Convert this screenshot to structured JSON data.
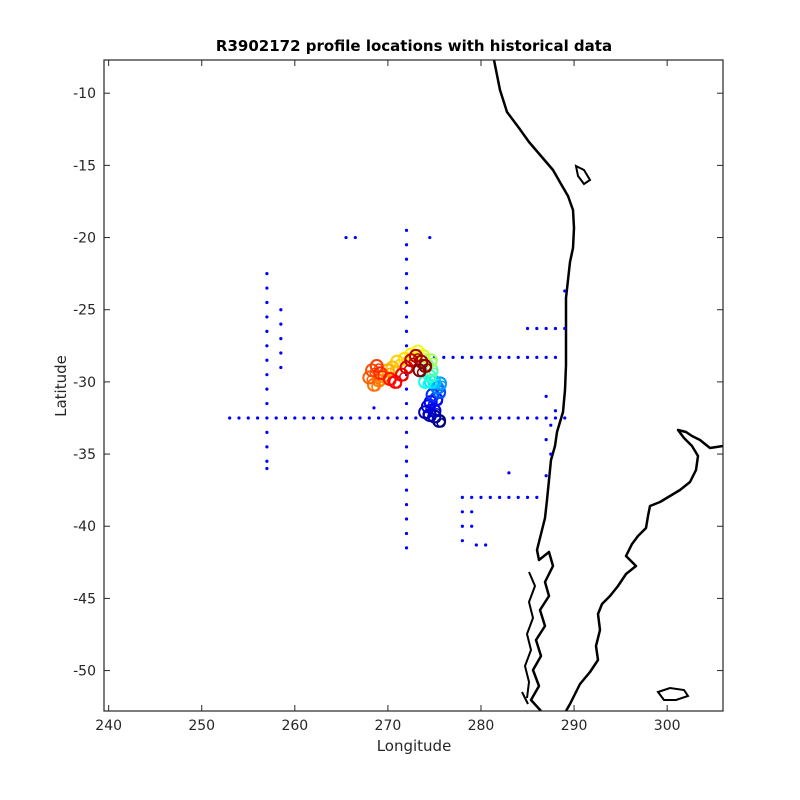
{
  "chart_data": {
    "type": "scatter",
    "title": "R3902172 profile locations with historical data",
    "xlabel": "Longitude",
    "ylabel": "Latitude",
    "xlim": [
      239.5,
      306
    ],
    "ylim": [
      -52.8,
      -7.7
    ],
    "xticks": [
      240,
      250,
      260,
      270,
      280,
      290,
      300
    ],
    "yticks": [
      -10,
      -15,
      -20,
      -25,
      -30,
      -35,
      -40,
      -45,
      -50
    ],
    "grid": false,
    "legend": "none",
    "colors": {
      "historical": "#0000ff",
      "coast": "#000000",
      "axis": "#262626"
    },
    "series": [
      {
        "role": "historical data",
        "color": "#0000ff",
        "points": [
          [
            253,
            -32.5
          ],
          [
            254,
            -32.5
          ],
          [
            255,
            -32.5
          ],
          [
            256,
            -32.5
          ],
          [
            257,
            -32.5
          ],
          [
            258,
            -32.5
          ],
          [
            259,
            -32.5
          ],
          [
            260,
            -32.5
          ],
          [
            261,
            -32.5
          ],
          [
            262,
            -32.5
          ],
          [
            263,
            -32.5
          ],
          [
            264,
            -32.5
          ],
          [
            265,
            -32.5
          ],
          [
            266,
            -32.5
          ],
          [
            267,
            -32.5
          ],
          [
            268,
            -32.5
          ],
          [
            269,
            -32.5
          ],
          [
            270,
            -32.5
          ],
          [
            271,
            -32.5
          ],
          [
            272,
            -32.5
          ],
          [
            273,
            -32.5
          ],
          [
            274,
            -32.5
          ],
          [
            275,
            -32.5
          ],
          [
            276,
            -32.5
          ],
          [
            277,
            -32.5
          ],
          [
            278,
            -32.5
          ],
          [
            279,
            -32.5
          ],
          [
            280,
            -32.5
          ],
          [
            281,
            -32.5
          ],
          [
            282,
            -32.5
          ],
          [
            283,
            -32.5
          ],
          [
            284,
            -32.5
          ],
          [
            285,
            -32.5
          ],
          [
            286,
            -32.5
          ],
          [
            287,
            -32.5
          ],
          [
            288,
            -32.5
          ],
          [
            289,
            -32.5
          ],
          [
            257,
            -22.5
          ],
          [
            257,
            -23.5
          ],
          [
            257,
            -24.5
          ],
          [
            257,
            -25.5
          ],
          [
            257,
            -26.5
          ],
          [
            257,
            -27.5
          ],
          [
            257,
            -28.5
          ],
          [
            257,
            -29.5
          ],
          [
            257,
            -30.5
          ],
          [
            257,
            -31.5
          ],
          [
            257,
            -33.5
          ],
          [
            257,
            -34.5
          ],
          [
            257,
            -35.5
          ],
          [
            257,
            -36
          ],
          [
            258.5,
            -25
          ],
          [
            258.5,
            -26
          ],
          [
            258.5,
            -27
          ],
          [
            258.5,
            -28
          ],
          [
            258.5,
            -29
          ],
          [
            272,
            -19.5
          ],
          [
            272,
            -20.5
          ],
          [
            272,
            -21.5
          ],
          [
            272,
            -22.5
          ],
          [
            272,
            -23.5
          ],
          [
            272,
            -24.5
          ],
          [
            272,
            -25.5
          ],
          [
            272,
            -26.5
          ],
          [
            272,
            -27.5
          ],
          [
            272,
            -28.5
          ],
          [
            272,
            -29.5
          ],
          [
            272,
            -30.5
          ],
          [
            272,
            -31.5
          ],
          [
            272,
            -33.5
          ],
          [
            272,
            -34.5
          ],
          [
            272,
            -35.5
          ],
          [
            272,
            -36.5
          ],
          [
            272,
            -37.5
          ],
          [
            272,
            -38.5
          ],
          [
            272,
            -39.5
          ],
          [
            272,
            -40.5
          ],
          [
            272,
            -41.5
          ],
          [
            265.5,
            -20
          ],
          [
            266.5,
            -20
          ],
          [
            274.5,
            -20
          ],
          [
            275,
            -28.3
          ],
          [
            276,
            -28.3
          ],
          [
            277,
            -28.3
          ],
          [
            278,
            -28.3
          ],
          [
            279,
            -28.3
          ],
          [
            280,
            -28.3
          ],
          [
            281,
            -28.3
          ],
          [
            282,
            -28.3
          ],
          [
            283,
            -28.3
          ],
          [
            284,
            -28.3
          ],
          [
            285,
            -28.3
          ],
          [
            286,
            -28.3
          ],
          [
            287,
            -28.3
          ],
          [
            288,
            -28.3
          ],
          [
            285,
            -26.3
          ],
          [
            286,
            -26.3
          ],
          [
            287,
            -26.3
          ],
          [
            288,
            -26.3
          ],
          [
            289,
            -26.3
          ],
          [
            278,
            -38
          ],
          [
            279,
            -38
          ],
          [
            280,
            -38
          ],
          [
            281,
            -38
          ],
          [
            282,
            -38
          ],
          [
            283,
            -38
          ],
          [
            284,
            -38
          ],
          [
            285,
            -38
          ],
          [
            286,
            -38
          ],
          [
            278,
            -39
          ],
          [
            278,
            -40
          ],
          [
            278,
            -41
          ],
          [
            279,
            -39
          ],
          [
            279,
            -40
          ],
          [
            279.5,
            -41.3
          ],
          [
            280.5,
            -41.3
          ],
          [
            287,
            -31
          ],
          [
            287.5,
            -33
          ],
          [
            287,
            -34
          ],
          [
            287.5,
            -35
          ],
          [
            288,
            -32
          ],
          [
            287,
            -36.5
          ],
          [
            283,
            -36.3
          ],
          [
            268.5,
            -31.8
          ],
          [
            289,
            -23.7
          ]
        ]
      },
      {
        "role": "float profiles (colored by cycle)",
        "color_scale": [
          "#00007f",
          "#0000ff",
          "#00ffff",
          "#ffff00",
          "#ff7f00",
          "#ff0000",
          "#7f0000"
        ],
        "points": [
          [
            275.5,
            -32.7
          ],
          [
            275,
            -32.4
          ],
          [
            274.5,
            -32.3
          ],
          [
            274,
            -32.1
          ],
          [
            275,
            -32
          ],
          [
            274.3,
            -31.7
          ],
          [
            274.6,
            -31.4
          ],
          [
            275.2,
            -31.2
          ],
          [
            274.8,
            -30.9
          ],
          [
            275.5,
            -30.7
          ],
          [
            275.3,
            -30.4
          ],
          [
            275.6,
            -30.1
          ],
          [
            275,
            -30
          ],
          [
            274.6,
            -30
          ],
          [
            274,
            -30
          ],
          [
            274.5,
            -29.6
          ],
          [
            274.7,
            -29.2
          ],
          [
            274.2,
            -28.8
          ],
          [
            274.6,
            -28.5
          ],
          [
            273.8,
            -28.2
          ],
          [
            273.2,
            -27.9
          ],
          [
            272.5,
            -28.1
          ],
          [
            271.8,
            -28.4
          ],
          [
            271,
            -28.6
          ],
          [
            270.5,
            -29
          ],
          [
            270,
            -29.2
          ],
          [
            269.5,
            -29.6
          ],
          [
            269,
            -29.9
          ],
          [
            268.5,
            -30.2
          ],
          [
            268,
            -29.7
          ],
          [
            268.3,
            -29.2
          ],
          [
            268.8,
            -28.9
          ],
          [
            269.2,
            -29.4
          ],
          [
            270.2,
            -29.8
          ],
          [
            270.8,
            -30
          ],
          [
            271.5,
            -29.5
          ],
          [
            272,
            -29
          ],
          [
            272.5,
            -28.5
          ],
          [
            273,
            -28.2
          ],
          [
            273.6,
            -28.6
          ],
          [
            274,
            -28.9
          ],
          [
            273.4,
            -29.2
          ]
        ]
      }
    ]
  }
}
